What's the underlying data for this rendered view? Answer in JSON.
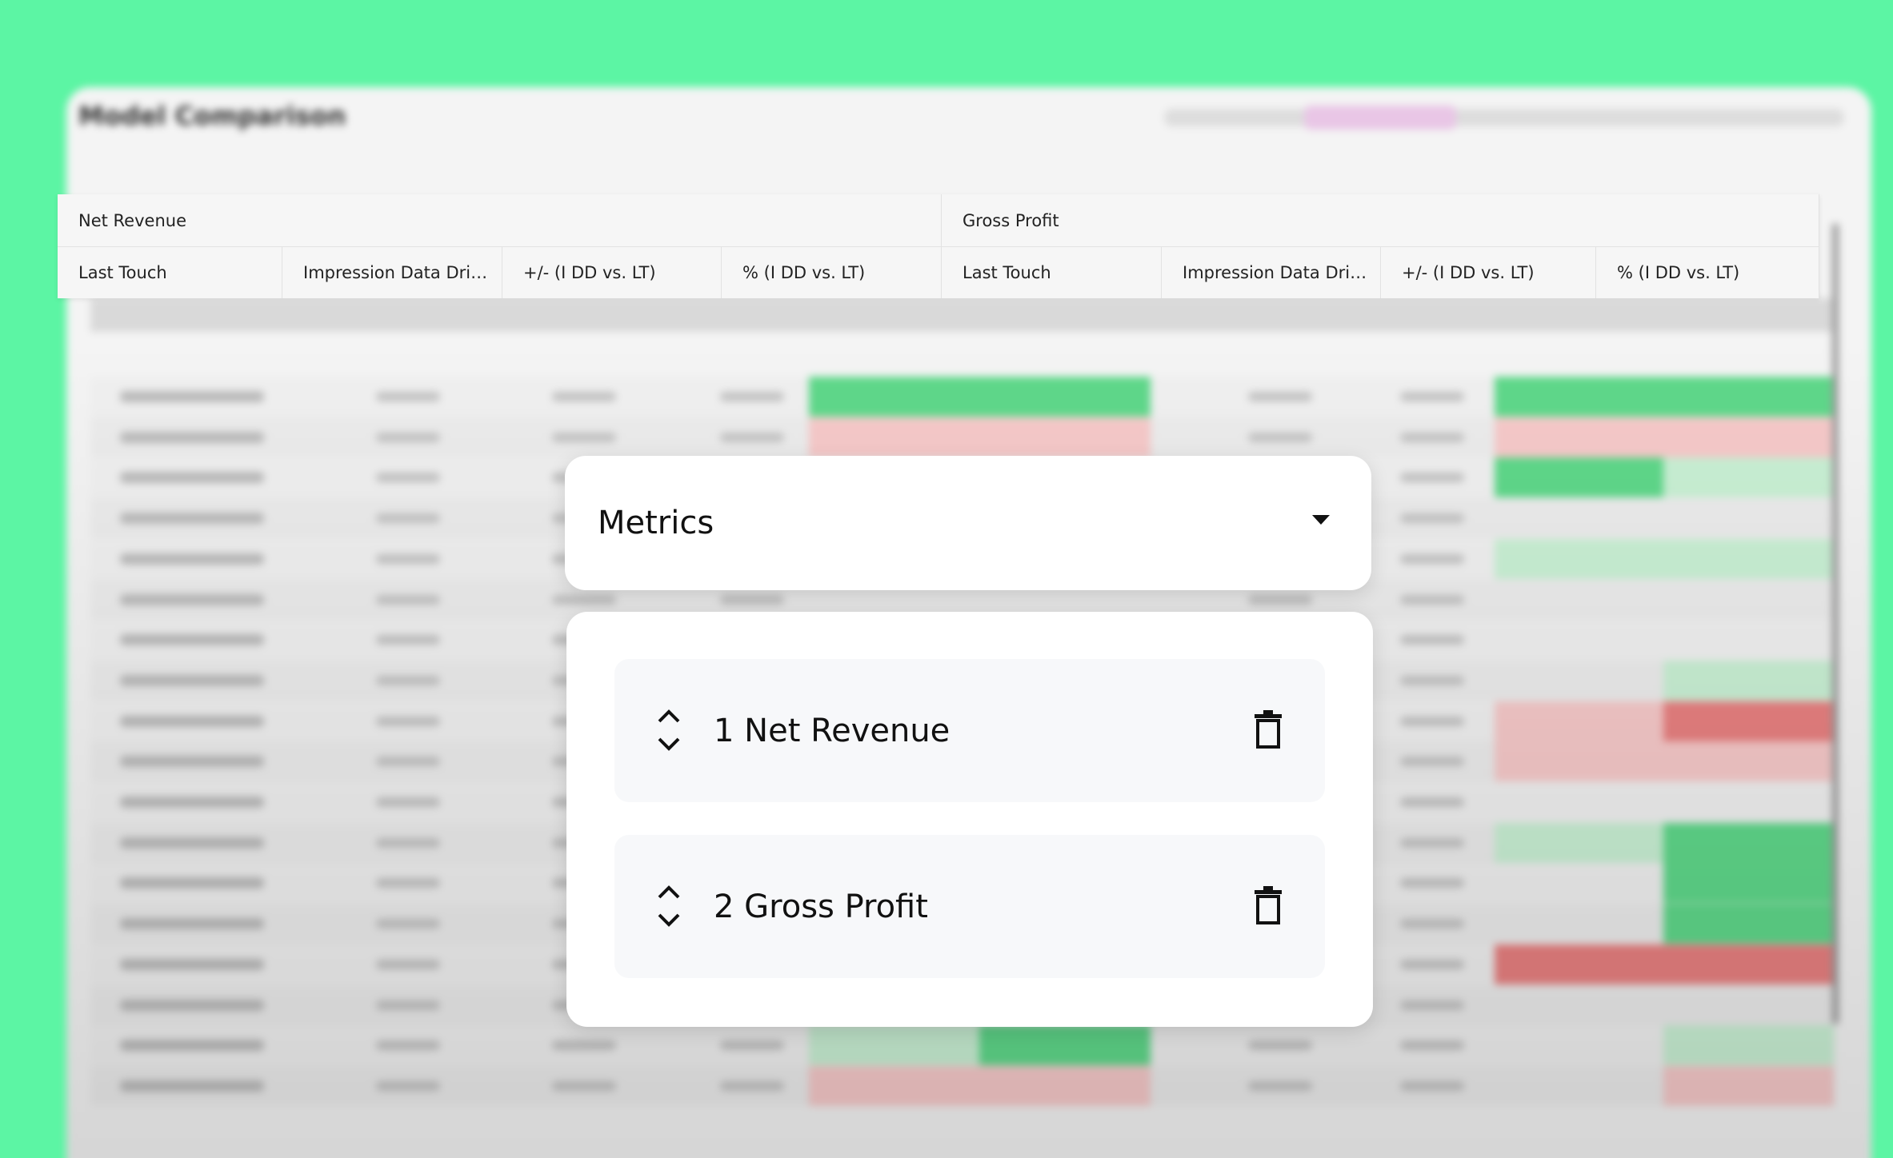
{
  "header": {
    "title": "Model Comparison"
  },
  "table": {
    "groups": [
      "Net Revenue",
      "Gross Profit"
    ],
    "columns": [
      "Last Touch",
      "Impression Data Dri…",
      "+/- (I DD vs. LT)",
      "% (I DD vs. LT)",
      "Last Touch",
      "Impression Data Dri…",
      "+/- (I DD vs. LT)",
      "% (I DD vs. LT)"
    ]
  },
  "metrics_panel": {
    "title": "Metrics",
    "items": [
      "1 Net Revenue",
      "2 Gross Profit"
    ]
  }
}
